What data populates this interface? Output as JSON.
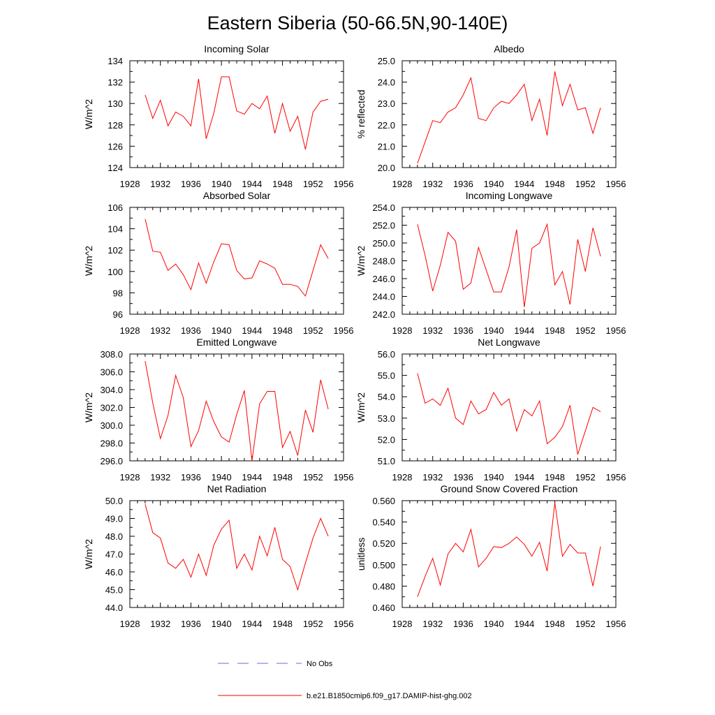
{
  "figure": {
    "title": "Eastern Siberia (50-66.5N,90-140E)"
  },
  "legend": {
    "entries": [
      {
        "label": "No Obs",
        "color": "#6a6adc",
        "style": "dashed"
      },
      {
        "label": "b.e21.B1850cmip6.f09_g17.DAMIP-hist-ghg.002",
        "color": "#ff0000",
        "style": "solid"
      }
    ]
  },
  "chart_data": [
    {
      "type": "line",
      "title": "Incoming Solar",
      "ylabel": "W/m^2",
      "xlabel": "",
      "xlim": [
        1928,
        1956
      ],
      "ylim": [
        124,
        134
      ],
      "xticks": [
        "1928",
        "1932",
        "1936",
        "1940",
        "1944",
        "1948",
        "1952",
        "1956"
      ],
      "yticks": [
        "124",
        "126",
        "128",
        "130",
        "132",
        "134"
      ],
      "series": [
        {
          "color": "#ff0000",
          "x": [
            1930,
            1931,
            1932,
            1933,
            1934,
            1935,
            1936,
            1937,
            1938,
            1939,
            1940,
            1941,
            1942,
            1943,
            1944,
            1945,
            1946,
            1947,
            1948,
            1949,
            1950,
            1951,
            1952,
            1953,
            1954
          ],
          "y": [
            130.8,
            128.6,
            130.3,
            127.9,
            129.2,
            128.8,
            127.9,
            132.3,
            126.7,
            129.1,
            132.5,
            132.5,
            129.3,
            129.0,
            130.0,
            129.5,
            130.7,
            127.2,
            130.0,
            127.4,
            128.8,
            125.7,
            129.2,
            130.2,
            130.4
          ]
        }
      ]
    },
    {
      "type": "line",
      "title": "Albedo",
      "ylabel": "% reflected",
      "xlabel": "",
      "xlim": [
        1928,
        1956
      ],
      "ylim": [
        20.0,
        25.0
      ],
      "xticks": [
        "1928",
        "1932",
        "1936",
        "1940",
        "1944",
        "1948",
        "1952",
        "1956"
      ],
      "yticks": [
        "20.0",
        "21.0",
        "22.0",
        "23.0",
        "24.0",
        "25.0"
      ],
      "series": [
        {
          "color": "#ff0000",
          "x": [
            1930,
            1931,
            1932,
            1933,
            1934,
            1935,
            1936,
            1937,
            1938,
            1939,
            1940,
            1941,
            1942,
            1943,
            1944,
            1945,
            1946,
            1947,
            1948,
            1949,
            1950,
            1951,
            1952,
            1953,
            1954
          ],
          "y": [
            20.2,
            21.2,
            22.2,
            22.1,
            22.6,
            22.8,
            23.4,
            24.2,
            22.3,
            22.2,
            22.8,
            23.1,
            23.0,
            23.4,
            23.9,
            22.2,
            23.2,
            21.5,
            24.5,
            22.9,
            23.9,
            22.7,
            22.8,
            21.6,
            22.8
          ]
        }
      ]
    },
    {
      "type": "line",
      "title": "Absorbed Solar",
      "ylabel": "W/m^2",
      "xlabel": "",
      "xlim": [
        1928,
        1956
      ],
      "ylim": [
        96,
        106
      ],
      "xticks": [
        "1928",
        "1932",
        "1936",
        "1940",
        "1944",
        "1948",
        "1952",
        "1956"
      ],
      "yticks": [
        "96",
        "98",
        "100",
        "102",
        "104",
        "106"
      ],
      "series": [
        {
          "color": "#ff0000",
          "x": [
            1930,
            1931,
            1932,
            1933,
            1934,
            1935,
            1936,
            1937,
            1938,
            1939,
            1940,
            1941,
            1942,
            1943,
            1944,
            1945,
            1946,
            1947,
            1948,
            1949,
            1950,
            1951,
            1952,
            1953,
            1954
          ],
          "y": [
            104.9,
            101.9,
            101.8,
            100.1,
            100.7,
            99.7,
            98.3,
            100.8,
            98.9,
            100.9,
            102.6,
            102.5,
            100.1,
            99.3,
            99.4,
            101.0,
            100.7,
            100.3,
            98.8,
            98.8,
            98.6,
            97.7,
            100.1,
            102.5,
            101.2
          ]
        }
      ]
    },
    {
      "type": "line",
      "title": "Incoming Longwave",
      "ylabel": "W/m^2",
      "xlabel": "",
      "xlim": [
        1928,
        1956
      ],
      "ylim": [
        242.0,
        254.0
      ],
      "xticks": [
        "1928",
        "1932",
        "1936",
        "1940",
        "1944",
        "1948",
        "1952",
        "1956"
      ],
      "yticks": [
        "242.0",
        "244.0",
        "246.0",
        "248.0",
        "250.0",
        "252.0",
        "254.0"
      ],
      "series": [
        {
          "color": "#ff0000",
          "x": [
            1930,
            1931,
            1932,
            1933,
            1934,
            1935,
            1936,
            1937,
            1938,
            1939,
            1940,
            1941,
            1942,
            1943,
            1944,
            1945,
            1946,
            1947,
            1948,
            1949,
            1950,
            1951,
            1952,
            1953,
            1954
          ],
          "y": [
            252.1,
            248.6,
            244.6,
            247.5,
            251.2,
            250.2,
            244.8,
            245.5,
            249.5,
            247.0,
            244.5,
            244.5,
            247.3,
            251.5,
            242.8,
            249.4,
            250.0,
            252.1,
            245.3,
            246.8,
            243.1,
            250.4,
            246.8,
            251.7,
            248.5
          ]
        }
      ]
    },
    {
      "type": "line",
      "title": "Emitted Longwave",
      "ylabel": "W/m^2",
      "xlabel": "",
      "xlim": [
        1928,
        1956
      ],
      "ylim": [
        296.0,
        308.0
      ],
      "xticks": [
        "1928",
        "1932",
        "1936",
        "1940",
        "1944",
        "1948",
        "1952",
        "1956"
      ],
      "yticks": [
        "296.0",
        "298.0",
        "300.0",
        "302.0",
        "304.0",
        "306.0",
        "308.0"
      ],
      "series": [
        {
          "color": "#ff0000",
          "x": [
            1930,
            1931,
            1932,
            1933,
            1934,
            1935,
            1936,
            1937,
            1938,
            1939,
            1940,
            1941,
            1942,
            1943,
            1944,
            1945,
            1946,
            1947,
            1948,
            1949,
            1950,
            1951,
            1952,
            1953,
            1954
          ],
          "y": [
            307.2,
            302.5,
            298.5,
            301.1,
            305.6,
            303.1,
            297.6,
            299.4,
            302.7,
            300.4,
            298.7,
            298.1,
            301.2,
            303.9,
            296.0,
            302.4,
            303.8,
            303.8,
            297.5,
            299.3,
            296.6,
            301.7,
            299.2,
            305.1,
            301.8
          ]
        }
      ]
    },
    {
      "type": "line",
      "title": "Net Longwave",
      "ylabel": "W/m^2",
      "xlabel": "",
      "xlim": [
        1928,
        1956
      ],
      "ylim": [
        51.0,
        56.0
      ],
      "xticks": [
        "1928",
        "1932",
        "1936",
        "1940",
        "1944",
        "1948",
        "1952",
        "1956"
      ],
      "yticks": [
        "51.0",
        "52.0",
        "53.0",
        "54.0",
        "55.0",
        "56.0"
      ],
      "series": [
        {
          "color": "#ff0000",
          "x": [
            1930,
            1931,
            1932,
            1933,
            1934,
            1935,
            1936,
            1937,
            1938,
            1939,
            1940,
            1941,
            1942,
            1943,
            1944,
            1945,
            1946,
            1947,
            1948,
            1949,
            1950,
            1951,
            1952,
            1953,
            1954
          ],
          "y": [
            55.1,
            53.7,
            53.9,
            53.6,
            54.4,
            53.0,
            52.7,
            53.8,
            53.2,
            53.4,
            54.2,
            53.6,
            53.9,
            52.4,
            53.4,
            53.1,
            53.8,
            51.8,
            52.1,
            52.6,
            53.6,
            51.3,
            52.4,
            53.5,
            53.3
          ]
        }
      ]
    },
    {
      "type": "line",
      "title": "Net Radiation",
      "ylabel": "W/m^2",
      "xlabel": "",
      "xlim": [
        1928,
        1956
      ],
      "ylim": [
        44.0,
        50.0
      ],
      "xticks": [
        "1928",
        "1932",
        "1936",
        "1940",
        "1944",
        "1948",
        "1952",
        "1956"
      ],
      "yticks": [
        "44.0",
        "45.0",
        "46.0",
        "47.0",
        "48.0",
        "49.0",
        "50.0"
      ],
      "series": [
        {
          "color": "#ff0000",
          "x": [
            1930,
            1931,
            1932,
            1933,
            1934,
            1935,
            1936,
            1937,
            1938,
            1939,
            1940,
            1941,
            1942,
            1943,
            1944,
            1945,
            1946,
            1947,
            1948,
            1949,
            1950,
            1951,
            1952,
            1953,
            1954
          ],
          "y": [
            49.8,
            48.2,
            47.9,
            46.5,
            46.2,
            46.7,
            45.7,
            47.0,
            45.8,
            47.5,
            48.4,
            48.9,
            46.2,
            47.0,
            46.1,
            48.0,
            46.9,
            48.5,
            46.7,
            46.3,
            45.0,
            46.5,
            47.9,
            49.0,
            48.0
          ]
        }
      ]
    },
    {
      "type": "line",
      "title": "Ground Snow Covered Fraction",
      "ylabel": "unitless",
      "xlabel": "",
      "xlim": [
        1928,
        1956
      ],
      "ylim": [
        0.46,
        0.56
      ],
      "xticks": [
        "1928",
        "1932",
        "1936",
        "1940",
        "1944",
        "1948",
        "1952",
        "1956"
      ],
      "yticks": [
        "0.460",
        "0.480",
        "0.500",
        "0.520",
        "0.540",
        "0.560"
      ],
      "series": [
        {
          "color": "#ff0000",
          "x": [
            1930,
            1931,
            1932,
            1933,
            1934,
            1935,
            1936,
            1937,
            1938,
            1939,
            1940,
            1941,
            1942,
            1943,
            1944,
            1945,
            1946,
            1947,
            1948,
            1949,
            1950,
            1951,
            1952,
            1953,
            1954
          ],
          "y": [
            0.47,
            0.489,
            0.506,
            0.481,
            0.51,
            0.52,
            0.512,
            0.533,
            0.498,
            0.506,
            0.517,
            0.516,
            0.52,
            0.526,
            0.519,
            0.508,
            0.521,
            0.494,
            0.558,
            0.508,
            0.519,
            0.511,
            0.511,
            0.48,
            0.517
          ]
        }
      ]
    }
  ]
}
